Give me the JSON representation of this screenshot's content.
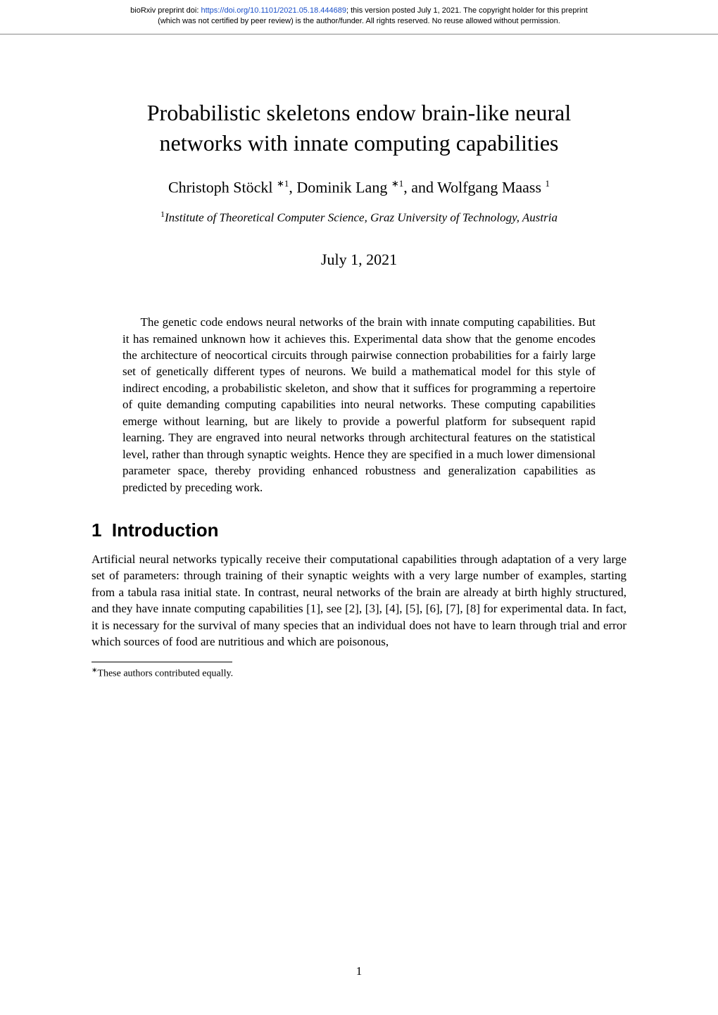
{
  "preprint": {
    "prefix": "bioRxiv preprint doi: ",
    "doi_url": "https://doi.org/10.1101/2021.05.18.444689",
    "line1_suffix": "; this version posted July 1, 2021. The copyright holder for this preprint",
    "line2": "(which was not certified by peer review) is the author/funder. All rights reserved. No reuse allowed without permission."
  },
  "title": {
    "line1": "Probabilistic skeletons endow brain-like neural",
    "line2": "networks with innate computing capabilities"
  },
  "authors": {
    "a1_name": "Christoph Stöckl ",
    "a1_sup": "∗1",
    "sep1": ", ",
    "a2_name": "Dominik Lang ",
    "a2_sup": "∗1",
    "sep2": ", and ",
    "a3_name": "Wolfgang Maass ",
    "a3_sup": "1"
  },
  "affiliation": {
    "sup": "1",
    "text": "Institute of Theoretical Computer Science, Graz University of Technology, Austria"
  },
  "date": "July 1, 2021",
  "abstract": "The genetic code endows neural networks of the brain with innate computing capabilities. But it has remained unknown how it achieves this. Experimental data show that the genome encodes the architecture of neocortical circuits through pairwise connection probabilities for a fairly large set of genetically different types of neurons. We build a mathematical model for this style of indirect encoding, a probabilistic skeleton, and show that it suffices for programming a repertoire of quite demanding computing capabilities into neural networks. These computing capabilities emerge without learning, but are likely to provide a powerful platform for subsequent rapid learning. They are engraved into neural networks through architectural features on the statistical level, rather than through synaptic weights. Hence they are specified in a much lower dimensional parameter space, thereby providing enhanced robustness and generalization capabilities as predicted by preceding work.",
  "section1": {
    "number": "1",
    "title": "Introduction"
  },
  "intro_para": "Artificial neural networks typically receive their computational capabilities through adaptation of a very large set of parameters: through training of their synaptic weights with a very large number of examples, starting from a tabula rasa initial state. In contrast, neural networks of the brain are already at birth highly structured, and they have innate computing capabilities [1], see [2], [3], [4], [5], [6], [7], [8] for experimental data. In fact, it is necessary for the survival of many species that an individual does not have to learn through trial and error which sources of food are nutritious and which are poisonous,",
  "footnote": {
    "marker": "∗",
    "text": "These authors contributed equally."
  },
  "page_number": "1"
}
